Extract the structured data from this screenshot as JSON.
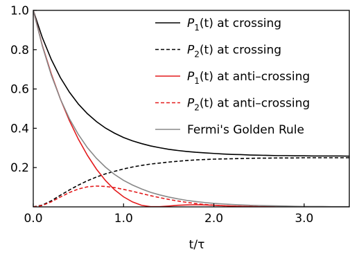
{
  "chart_data": {
    "type": "line",
    "xlabel": "t/τ",
    "ylabel": "",
    "xlim": [
      0,
      3.5
    ],
    "ylim": [
      0,
      1.0
    ],
    "x_ticks": [
      0,
      1,
      2,
      3
    ],
    "x_tick_labels": [
      "0.0",
      "1.0",
      "2.0",
      "3.0"
    ],
    "y_ticks": [
      0.2,
      0.4,
      0.6,
      0.8,
      1.0
    ],
    "y_tick_labels": [
      "0.2",
      "0.4",
      "0.6",
      "0.8",
      "1.0"
    ],
    "grid": false,
    "legend_position": "top-right",
    "x": [
      0,
      0.1,
      0.2,
      0.3,
      0.4,
      0.5,
      0.6,
      0.7,
      0.8,
      0.9,
      1.0,
      1.1,
      1.2,
      1.3,
      1.4,
      1.5,
      1.6,
      1.7,
      1.8,
      1.9,
      2.0,
      2.1,
      2.2,
      2.3,
      2.4,
      2.5,
      2.6,
      2.7,
      2.8,
      2.9,
      3.0,
      3.1,
      3.2,
      3.3,
      3.4,
      3.5
    ],
    "series": [
      {
        "name_prefix": "P",
        "name_sub": "1",
        "name_suffix": "(t) at crossing",
        "color": "#000000",
        "dash": "solid",
        "values": [
          1.0,
          0.862,
          0.75,
          0.658,
          0.584,
          0.523,
          0.474,
          0.434,
          0.401,
          0.375,
          0.353,
          0.336,
          0.322,
          0.31,
          0.301,
          0.293,
          0.287,
          0.282,
          0.278,
          0.275,
          0.272,
          0.269,
          0.267,
          0.266,
          0.264,
          0.263,
          0.262,
          0.261,
          0.261,
          0.26,
          0.26,
          0.259,
          0.259,
          0.259,
          0.259,
          0.258
        ]
      },
      {
        "name_prefix": "P",
        "name_sub": "2",
        "name_suffix": "(t) at crossing",
        "color": "#000000",
        "dash": "dashed",
        "values": [
          0.0,
          0.009,
          0.031,
          0.059,
          0.086,
          0.111,
          0.133,
          0.152,
          0.168,
          0.181,
          0.193,
          0.203,
          0.211,
          0.218,
          0.223,
          0.228,
          0.232,
          0.236,
          0.239,
          0.241,
          0.243,
          0.244,
          0.245,
          0.246,
          0.247,
          0.248,
          0.248,
          0.249,
          0.249,
          0.249,
          0.25,
          0.25,
          0.25,
          0.25,
          0.25,
          0.25
        ]
      },
      {
        "name_prefix": "P",
        "name_sub": "1",
        "name_suffix": "(t) at anti–crossing",
        "color": "#e31a1c",
        "dash": "solid",
        "values": [
          1.0,
          0.822,
          0.676,
          0.549,
          0.439,
          0.344,
          0.262,
          0.192,
          0.134,
          0.087,
          0.051,
          0.025,
          0.008,
          0.001,
          0.001,
          0.004,
          0.008,
          0.01,
          0.011,
          0.01,
          0.008,
          0.006,
          0.004,
          0.003,
          0.002,
          0.001,
          0.001,
          0.0,
          0.0,
          0.0,
          0.0,
          0.0,
          0.0,
          0.0,
          0.0,
          0.0
        ]
      },
      {
        "name_prefix": "P",
        "name_sub": "2",
        "name_suffix": "(t) at anti–crossing",
        "color": "#e31a1c",
        "dash": "dashed",
        "values": [
          0.0,
          0.007,
          0.026,
          0.05,
          0.073,
          0.091,
          0.102,
          0.106,
          0.104,
          0.098,
          0.089,
          0.079,
          0.068,
          0.057,
          0.047,
          0.038,
          0.03,
          0.023,
          0.017,
          0.012,
          0.009,
          0.006,
          0.004,
          0.003,
          0.002,
          0.001,
          0.001,
          0.0,
          0.0,
          0.0,
          0.0,
          0.0,
          0.0,
          0.0,
          0.0,
          0.0
        ]
      },
      {
        "name_prefix": "",
        "name_sub": "",
        "name_suffix": "Fermi's Golden Rule",
        "color": "#888888",
        "dash": "solid",
        "values": [
          1.0,
          0.819,
          0.67,
          0.549,
          0.449,
          0.368,
          0.301,
          0.247,
          0.202,
          0.165,
          0.135,
          0.111,
          0.091,
          0.074,
          0.061,
          0.05,
          0.041,
          0.033,
          0.027,
          0.022,
          0.018,
          0.015,
          0.012,
          0.01,
          0.008,
          0.007,
          0.006,
          0.005,
          0.004,
          0.003,
          0.002,
          0.002,
          0.002,
          0.001,
          0.001,
          0.001
        ]
      }
    ]
  }
}
